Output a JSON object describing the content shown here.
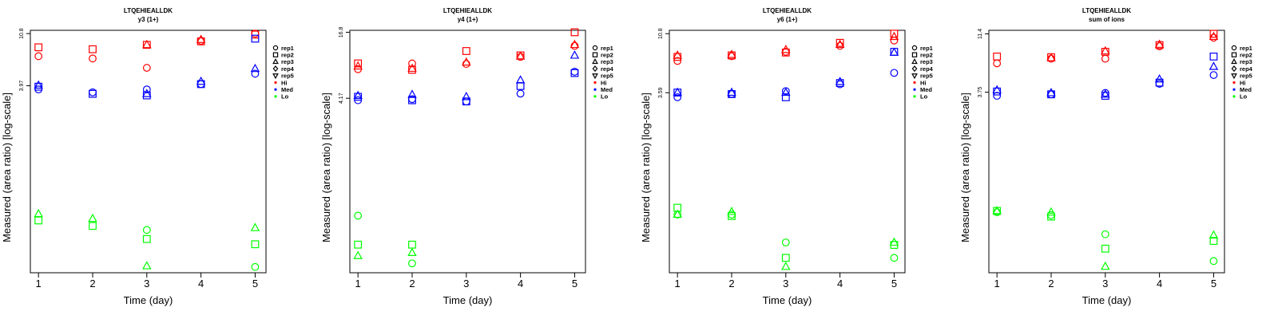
{
  "legend": {
    "entries": [
      {
        "label": "rep1",
        "symbol": "circle"
      },
      {
        "label": "rep2",
        "symbol": "square"
      },
      {
        "label": "rep3",
        "symbol": "triangle-up"
      },
      {
        "label": "rep4",
        "symbol": "diamond"
      },
      {
        "label": "rep5",
        "symbol": "triangle-down"
      },
      {
        "label": "Hi",
        "symbol": "dot",
        "color": "#ff0000"
      },
      {
        "label": "Med",
        "symbol": "dot",
        "color": "#0000ff"
      },
      {
        "label": "Lo",
        "symbol": "dot",
        "color": "#00ff00"
      }
    ]
  },
  "colors": {
    "Hi": "#ff0000",
    "Med": "#0000ff",
    "Lo": "#00ff00"
  },
  "chart_data": [
    {
      "type": "scatter",
      "title": "LTQEHIEALLDK",
      "subtitle": "y3 (1+)",
      "xlabel": "Time (day)",
      "ylabel": "Measured (area ratio) [log-scale]",
      "x_ticks": [
        1,
        2,
        3,
        4,
        5
      ],
      "y_ticks": [
        "3.97",
        "10.8"
      ],
      "y_scale": "log",
      "ylim": [
        0.11,
        11.5
      ],
      "legend_position": "right",
      "series": [
        {
          "name": "Hi",
          "points": [
            {
              "x": 1,
              "rep": "rep1",
              "y": 7.0
            },
            {
              "x": 1,
              "rep": "rep2",
              "y": 8.3
            },
            {
              "x": 2,
              "rep": "rep1",
              "y": 6.7
            },
            {
              "x": 2,
              "rep": "rep2",
              "y": 8.0
            },
            {
              "x": 3,
              "rep": "rep1",
              "y": 5.6
            },
            {
              "x": 3,
              "rep": "rep2",
              "y": 8.7
            },
            {
              "x": 3,
              "rep": "rep3",
              "y": 8.7
            },
            {
              "x": 4,
              "rep": "rep1",
              "y": 9.4
            },
            {
              "x": 4,
              "rep": "rep2",
              "y": 9.3
            },
            {
              "x": 4,
              "rep": "rep3",
              "y": 9.6
            },
            {
              "x": 5,
              "rep": "rep1",
              "y": 10.8
            },
            {
              "x": 5,
              "rep": "rep2",
              "y": 10.6
            }
          ]
        },
        {
          "name": "Med",
          "points": [
            {
              "x": 1,
              "rep": "rep1",
              "y": 3.7
            },
            {
              "x": 1,
              "rep": "rep2",
              "y": 3.9
            },
            {
              "x": 1,
              "rep": "rep3",
              "y": 4.0
            },
            {
              "x": 2,
              "rep": "rep1",
              "y": 3.5
            },
            {
              "x": 2,
              "rep": "rep2",
              "y": 3.4
            },
            {
              "x": 3,
              "rep": "rep1",
              "y": 3.7
            },
            {
              "x": 3,
              "rep": "rep2",
              "y": 3.3
            },
            {
              "x": 3,
              "rep": "rep3",
              "y": 3.4
            },
            {
              "x": 4,
              "rep": "rep1",
              "y": 4.1
            },
            {
              "x": 4,
              "rep": "rep2",
              "y": 4.1
            },
            {
              "x": 4,
              "rep": "rep3",
              "y": 4.3
            },
            {
              "x": 5,
              "rep": "rep1",
              "y": 5.0
            },
            {
              "x": 5,
              "rep": "rep2",
              "y": 9.8
            },
            {
              "x": 5,
              "rep": "rep3",
              "y": 5.5
            }
          ]
        },
        {
          "name": "Lo",
          "points": [
            {
              "x": 1,
              "rep": "rep2",
              "y": 0.3
            },
            {
              "x": 1,
              "rep": "rep3",
              "y": 0.34
            },
            {
              "x": 2,
              "rep": "rep2",
              "y": 0.27
            },
            {
              "x": 2,
              "rep": "rep3",
              "y": 0.31
            },
            {
              "x": 3,
              "rep": "rep1",
              "y": 0.25
            },
            {
              "x": 3,
              "rep": "rep2",
              "y": 0.21
            },
            {
              "x": 3,
              "rep": "rep3",
              "y": 0.125
            },
            {
              "x": 5,
              "rep": "rep1",
              "y": 0.123
            },
            {
              "x": 5,
              "rep": "rep2",
              "y": 0.19
            },
            {
              "x": 5,
              "rep": "rep3",
              "y": 0.26
            }
          ]
        }
      ]
    },
    {
      "type": "scatter",
      "title": "LTQEHIEALLDK",
      "subtitle": "y4 (1+)",
      "xlabel": "Time (day)",
      "ylabel": "Measured (area ratio) [log-scale]",
      "x_ticks": [
        1,
        2,
        3,
        4,
        5
      ],
      "y_ticks": [
        "4.17",
        "16.8"
      ],
      "y_scale": "log",
      "ylim": [
        0.105,
        17.5
      ],
      "legend_position": "right",
      "series": [
        {
          "name": "Hi",
          "points": [
            {
              "x": 1,
              "rep": "rep1",
              "y": 7.7
            },
            {
              "x": 1,
              "rep": "rep2",
              "y": 8.7
            },
            {
              "x": 1,
              "rep": "rep3",
              "y": 8.2
            },
            {
              "x": 2,
              "rep": "rep1",
              "y": 8.7
            },
            {
              "x": 2,
              "rep": "rep2",
              "y": 7.6
            },
            {
              "x": 2,
              "rep": "rep3",
              "y": 7.8
            },
            {
              "x": 3,
              "rep": "rep1",
              "y": 8.6
            },
            {
              "x": 3,
              "rep": "rep2",
              "y": 11.3
            },
            {
              "x": 3,
              "rep": "rep3",
              "y": 8.9
            },
            {
              "x": 4,
              "rep": "rep1",
              "y": 10.0
            },
            {
              "x": 4,
              "rep": "rep2",
              "y": 10.3
            },
            {
              "x": 4,
              "rep": "rep3",
              "y": 10.1
            },
            {
              "x": 5,
              "rep": "rep1",
              "y": 12.6
            },
            {
              "x": 5,
              "rep": "rep2",
              "y": 16.8
            },
            {
              "x": 5,
              "rep": "rep3",
              "y": 12.9
            }
          ]
        },
        {
          "name": "Med",
          "points": [
            {
              "x": 1,
              "rep": "rep1",
              "y": 4.0
            },
            {
              "x": 1,
              "rep": "rep2",
              "y": 4.3
            },
            {
              "x": 1,
              "rep": "rep3",
              "y": 4.4
            },
            {
              "x": 2,
              "rep": "rep1",
              "y": 4.1
            },
            {
              "x": 2,
              "rep": "rep2",
              "y": 4.0
            },
            {
              "x": 2,
              "rep": "rep3",
              "y": 4.5
            },
            {
              "x": 3,
              "rep": "rep1",
              "y": 3.9
            },
            {
              "x": 3,
              "rep": "rep2",
              "y": 3.9
            },
            {
              "x": 3,
              "rep": "rep3",
              "y": 4.3
            },
            {
              "x": 4,
              "rep": "rep1",
              "y": 4.6
            },
            {
              "x": 4,
              "rep": "rep2",
              "y": 5.4
            },
            {
              "x": 4,
              "rep": "rep3",
              "y": 6.1
            },
            {
              "x": 5,
              "rep": "rep1",
              "y": 7.3
            },
            {
              "x": 5,
              "rep": "rep2",
              "y": 7.1
            },
            {
              "x": 5,
              "rep": "rep3",
              "y": 10.3
            }
          ]
        },
        {
          "name": "Lo",
          "points": [
            {
              "x": 1,
              "rep": "rep1",
              "y": 0.35
            },
            {
              "x": 1,
              "rep": "rep2",
              "y": 0.19
            },
            {
              "x": 1,
              "rep": "rep3",
              "y": 0.15
            },
            {
              "x": 2,
              "rep": "rep1",
              "y": 0.128
            },
            {
              "x": 2,
              "rep": "rep2",
              "y": 0.19
            },
            {
              "x": 2,
              "rep": "rep3",
              "y": 0.16
            }
          ]
        }
      ]
    },
    {
      "type": "scatter",
      "title": "LTQEHIEALLDK",
      "subtitle": "y6 (1+)",
      "xlabel": "Time (day)",
      "ylabel": "Measured (area ratio) [log-scale]",
      "x_ticks": [
        1,
        2,
        3,
        4,
        5
      ],
      "y_ticks": [
        "3.59",
        "10.8"
      ],
      "y_scale": "log",
      "ylim": [
        0.125,
        11.5
      ],
      "legend_position": "right",
      "series": [
        {
          "name": "Hi",
          "points": [
            {
              "x": 1,
              "rep": "rep1",
              "y": 6.5
            },
            {
              "x": 1,
              "rep": "rep2",
              "y": 7.0
            },
            {
              "x": 1,
              "rep": "rep3",
              "y": 7.2
            },
            {
              "x": 2,
              "rep": "rep1",
              "y": 7.1
            },
            {
              "x": 2,
              "rep": "rep2",
              "y": 7.2
            },
            {
              "x": 2,
              "rep": "rep3",
              "y": 7.3
            },
            {
              "x": 3,
              "rep": "rep1",
              "y": 7.7
            },
            {
              "x": 3,
              "rep": "rep2",
              "y": 7.6
            },
            {
              "x": 3,
              "rep": "rep3",
              "y": 8.0
            },
            {
              "x": 4,
              "rep": "rep1",
              "y": 8.6
            },
            {
              "x": 4,
              "rep": "rep2",
              "y": 9.1
            },
            {
              "x": 4,
              "rep": "rep3",
              "y": 8.8
            },
            {
              "x": 5,
              "rep": "rep1",
              "y": 9.5
            },
            {
              "x": 5,
              "rep": "rep2",
              "y": 10.8
            },
            {
              "x": 5,
              "rep": "rep3",
              "y": 10.2
            }
          ]
        },
        {
          "name": "Med",
          "points": [
            {
              "x": 1,
              "rep": "rep1",
              "y": 3.3
            },
            {
              "x": 1,
              "rep": "rep2",
              "y": 3.6
            },
            {
              "x": 1,
              "rep": "rep3",
              "y": 3.6
            },
            {
              "x": 2,
              "rep": "rep1",
              "y": 3.5
            },
            {
              "x": 2,
              "rep": "rep2",
              "y": 3.5
            },
            {
              "x": 2,
              "rep": "rep3",
              "y": 3.6
            },
            {
              "x": 3,
              "rep": "rep1",
              "y": 3.7
            },
            {
              "x": 3,
              "rep": "rep2",
              "y": 3.3
            },
            {
              "x": 3,
              "rep": "rep3",
              "y": 3.6
            },
            {
              "x": 4,
              "rep": "rep1",
              "y": 4.2
            },
            {
              "x": 4,
              "rep": "rep2",
              "y": 4.3
            },
            {
              "x": 4,
              "rep": "rep3",
              "y": 4.4
            },
            {
              "x": 5,
              "rep": "rep1",
              "y": 5.2
            },
            {
              "x": 5,
              "rep": "rep2",
              "y": 7.7
            },
            {
              "x": 5,
              "rep": "rep3",
              "y": 7.6
            }
          ]
        },
        {
          "name": "Lo",
          "points": [
            {
              "x": 1,
              "rep": "rep1",
              "y": 0.37
            },
            {
              "x": 1,
              "rep": "rep2",
              "y": 0.42
            },
            {
              "x": 1,
              "rep": "rep3",
              "y": 0.37
            },
            {
              "x": 2,
              "rep": "rep1",
              "y": 0.37
            },
            {
              "x": 2,
              "rep": "rep2",
              "y": 0.36
            },
            {
              "x": 2,
              "rep": "rep3",
              "y": 0.39
            },
            {
              "x": 3,
              "rep": "rep1",
              "y": 0.22
            },
            {
              "x": 3,
              "rep": "rep2",
              "y": 0.165
            },
            {
              "x": 3,
              "rep": "rep3",
              "y": 0.14
            },
            {
              "x": 5,
              "rep": "rep1",
              "y": 0.165
            },
            {
              "x": 5,
              "rep": "rep2",
              "y": 0.21
            },
            {
              "x": 5,
              "rep": "rep3",
              "y": 0.22
            }
          ]
        }
      ]
    },
    {
      "type": "scatter",
      "title": "LTQEHIEALLDK",
      "subtitle": "sum of ions",
      "xlabel": "Time (day)",
      "ylabel": "Measured (area ratio) [log-scale]",
      "x_ticks": [
        1,
        2,
        3,
        4,
        5
      ],
      "y_ticks": [
        "3.75",
        "11.4"
      ],
      "y_scale": "log",
      "ylim": [
        0.12,
        12.2
      ],
      "legend_position": "right",
      "series": [
        {
          "name": "Hi",
          "points": [
            {
              "x": 1,
              "rep": "rep1",
              "y": 6.5
            },
            {
              "x": 1,
              "rep": "rep2",
              "y": 7.4
            },
            {
              "x": 2,
              "rep": "rep1",
              "y": 7.1
            },
            {
              "x": 2,
              "rep": "rep2",
              "y": 7.3
            },
            {
              "x": 2,
              "rep": "rep3",
              "y": 7.2
            },
            {
              "x": 3,
              "rep": "rep1",
              "y": 7.1
            },
            {
              "x": 3,
              "rep": "rep2",
              "y": 8.1
            },
            {
              "x": 3,
              "rep": "rep3",
              "y": 8.2
            },
            {
              "x": 4,
              "rep": "rep1",
              "y": 9.0
            },
            {
              "x": 4,
              "rep": "rep2",
              "y": 9.2
            },
            {
              "x": 4,
              "rep": "rep3",
              "y": 9.3
            },
            {
              "x": 5,
              "rep": "rep1",
              "y": 10.6
            },
            {
              "x": 5,
              "rep": "rep2",
              "y": 11.4
            },
            {
              "x": 5,
              "rep": "rep3",
              "y": 10.8
            }
          ]
        },
        {
          "name": "Med",
          "points": [
            {
              "x": 1,
              "rep": "rep1",
              "y": 3.5
            },
            {
              "x": 1,
              "rep": "rep2",
              "y": 3.8
            },
            {
              "x": 1,
              "rep": "rep3",
              "y": 3.9
            },
            {
              "x": 2,
              "rep": "rep1",
              "y": 3.6
            },
            {
              "x": 2,
              "rep": "rep2",
              "y": 3.6
            },
            {
              "x": 2,
              "rep": "rep3",
              "y": 3.7
            },
            {
              "x": 3,
              "rep": "rep1",
              "y": 3.7
            },
            {
              "x": 3,
              "rep": "rep2",
              "y": 3.5
            },
            {
              "x": 3,
              "rep": "rep3",
              "y": 3.6
            },
            {
              "x": 4,
              "rep": "rep1",
              "y": 4.4
            },
            {
              "x": 4,
              "rep": "rep2",
              "y": 4.5
            },
            {
              "x": 4,
              "rep": "rep3",
              "y": 4.8
            },
            {
              "x": 5,
              "rep": "rep1",
              "y": 5.2
            },
            {
              "x": 5,
              "rep": "rep2",
              "y": 7.4
            },
            {
              "x": 5,
              "rep": "rep3",
              "y": 6.1
            }
          ]
        },
        {
          "name": "Lo",
          "points": [
            {
              "x": 1,
              "rep": "rep1",
              "y": 0.38
            },
            {
              "x": 1,
              "rep": "rep2",
              "y": 0.39
            },
            {
              "x": 1,
              "rep": "rep3",
              "y": 0.39
            },
            {
              "x": 2,
              "rep": "rep1",
              "y": 0.36
            },
            {
              "x": 2,
              "rep": "rep2",
              "y": 0.35
            },
            {
              "x": 2,
              "rep": "rep3",
              "y": 0.38
            },
            {
              "x": 3,
              "rep": "rep1",
              "y": 0.25
            },
            {
              "x": 3,
              "rep": "rep2",
              "y": 0.19
            },
            {
              "x": 3,
              "rep": "rep3",
              "y": 0.135
            },
            {
              "x": 5,
              "rep": "rep1",
              "y": 0.15
            },
            {
              "x": 5,
              "rep": "rep2",
              "y": 0.22
            },
            {
              "x": 5,
              "rep": "rep3",
              "y": 0.245
            }
          ]
        }
      ]
    }
  ]
}
